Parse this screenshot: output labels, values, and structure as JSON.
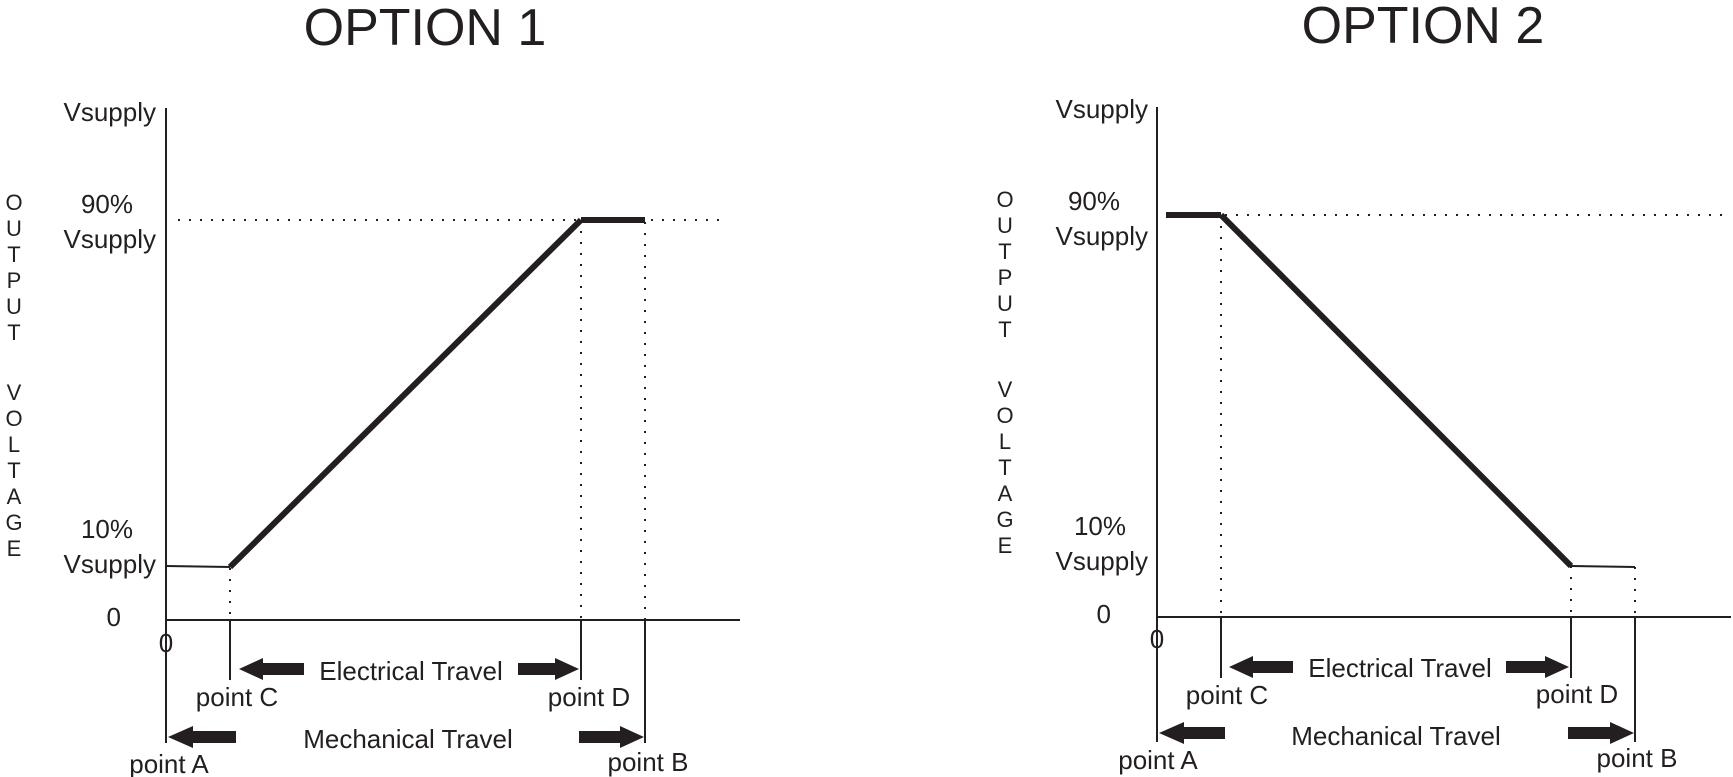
{
  "panels": [
    {
      "title": "OPTION 1",
      "y_axis_letters": [
        "O",
        "U",
        "T",
        "P",
        "U",
        "T",
        "",
        "V",
        "O",
        "L",
        "T",
        "A",
        "G",
        "E"
      ],
      "y_label_top": "Vsupply",
      "y_label_90_line1": "90%",
      "y_label_90_line2": "Vsupply",
      "y_label_10_line1": "10%",
      "y_label_10_line2": "Vsupply",
      "y_zero": "0",
      "x_zero": "0",
      "electrical_travel": "Electrical Travel",
      "mechanical_travel": "Mechanical Travel",
      "point_a": "point A",
      "point_b": "point B",
      "point_c": "point C",
      "point_d": "point D"
    },
    {
      "title": "OPTION 2",
      "y_axis_letters": [
        "O",
        "U",
        "T",
        "P",
        "U",
        "T",
        "",
        "V",
        "O",
        "L",
        "T",
        "A",
        "G",
        "E"
      ],
      "y_label_top": "Vsupply",
      "y_label_90_line1": "90%",
      "y_label_90_line2": "Vsupply",
      "y_label_10_line1": "10%",
      "y_label_10_line2": "Vsupply",
      "y_zero": "0",
      "x_zero": "0",
      "electrical_travel": "Electrical Travel",
      "mechanical_travel": "Mechanical Travel",
      "point_a": "point A",
      "point_b": "point B",
      "point_c": "point C",
      "point_d": "point D"
    }
  ],
  "colors": {
    "ink": "#231f20",
    "background": "#ffffff"
  }
}
